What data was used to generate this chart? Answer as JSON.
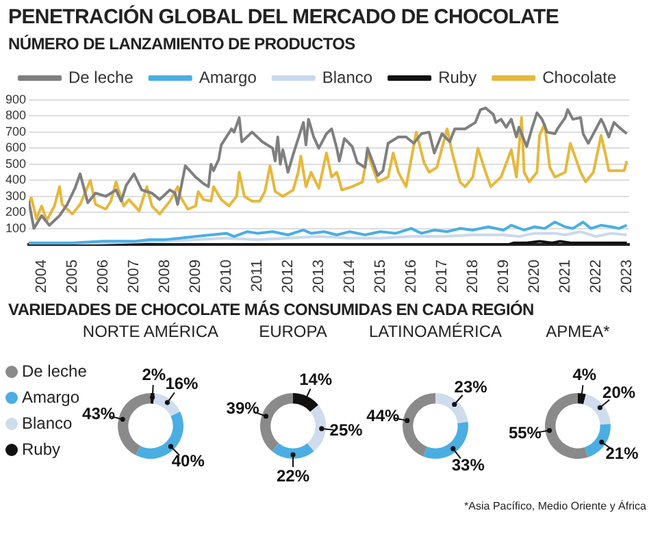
{
  "chart_data": [
    {
      "type": "line",
      "title": "PENETRACIÓN GLOBAL DEL MERCADO DE CHOCOLATE",
      "subtitle": "NÚMERO DE LANZAMIENTO DE PRODUCTOS",
      "xlim": [
        "2003-08",
        "2023-02"
      ],
      "xticks": [
        "2004",
        "2005",
        "2006",
        "2007",
        "2008",
        "2009",
        "2010",
        "2011",
        "2012",
        "2013",
        "2014",
        "2015",
        "2016",
        "2017",
        "2018",
        "2019",
        "2020",
        "2021",
        "2022",
        "2023"
      ],
      "ylim": [
        0,
        900
      ],
      "yticks": [
        100,
        200,
        300,
        400,
        500,
        600,
        700,
        800,
        900
      ],
      "grid": "y",
      "legend": "top",
      "marker": "none",
      "line_style": "solid",
      "series": [
        {
          "name": "De leche",
          "color": "#7f7f7f",
          "x": [
            "2003-08",
            "2003-10",
            "2004-01",
            "2004-04",
            "2004-08",
            "2004-11",
            "2005-02",
            "2005-04",
            "2005-07",
            "2005-10",
            "2006-02",
            "2006-06",
            "2006-08",
            "2006-10",
            "2007-01",
            "2007-04",
            "2007-08",
            "2007-11",
            "2008-03",
            "2008-05",
            "2008-06",
            "2008-09",
            "2009-01",
            "2009-04",
            "2009-06",
            "2009-07",
            "2009-08",
            "2009-10",
            "2009-11",
            "2010-03",
            "2010-04",
            "2010-06",
            "2010-07",
            "2010-11",
            "2011-03",
            "2011-07",
            "2011-08",
            "2011-09",
            "2011-10",
            "2011-11",
            "2012-01",
            "2012-03",
            "2012-05",
            "2012-07",
            "2012-08",
            "2012-09",
            "2012-11",
            "2013-01",
            "2013-04",
            "2013-06",
            "2013-08",
            "2013-09",
            "2013-11",
            "2014-02",
            "2014-04",
            "2014-07",
            "2014-08",
            "2014-12",
            "2015-02",
            "2015-04",
            "2015-08",
            "2015-11",
            "2016-02",
            "2016-05",
            "2016-08",
            "2016-10",
            "2017-01",
            "2017-04",
            "2017-06",
            "2017-10",
            "2018-02",
            "2018-04",
            "2018-06",
            "2018-09",
            "2018-10",
            "2018-12",
            "2019-02",
            "2019-04",
            "2019-06",
            "2019-07",
            "2019-10",
            "2019-12",
            "2020-02",
            "2020-04",
            "2020-06",
            "2020-09",
            "2020-10",
            "2021-01",
            "2021-02",
            "2021-04",
            "2021-07",
            "2021-08",
            "2021-10",
            "2022-01",
            "2022-03",
            "2022-04",
            "2022-06",
            "2022-08",
            "2022-10",
            "2023-01"
          ],
          "values": [
            270,
            100,
            180,
            120,
            180,
            250,
            350,
            440,
            260,
            320,
            300,
            340,
            270,
            370,
            440,
            340,
            320,
            280,
            340,
            320,
            250,
            490,
            420,
            380,
            360,
            500,
            460,
            530,
            620,
            720,
            700,
            790,
            640,
            700,
            640,
            600,
            520,
            670,
            500,
            590,
            450,
            560,
            660,
            760,
            620,
            780,
            670,
            600,
            690,
            720,
            600,
            520,
            660,
            610,
            510,
            480,
            600,
            430,
            460,
            630,
            670,
            670,
            630,
            690,
            700,
            570,
            690,
            640,
            720,
            720,
            760,
            840,
            850,
            810,
            760,
            780,
            730,
            780,
            670,
            730,
            610,
            720,
            820,
            780,
            700,
            690,
            720,
            790,
            840,
            780,
            790,
            690,
            630,
            720,
            780,
            750,
            670,
            760,
            730,
            690
          ]
        },
        {
          "name": "Amargo",
          "color": "#4aaee3",
          "x": [
            "2003-08",
            "2005-01",
            "2006-01",
            "2007-01",
            "2007-07",
            "2008-01",
            "2008-07",
            "2009-01",
            "2009-07",
            "2010-01",
            "2010-04",
            "2010-09",
            "2011-01",
            "2011-07",
            "2012-01",
            "2012-07",
            "2012-10",
            "2013-03",
            "2013-08",
            "2014-01",
            "2014-07",
            "2015-01",
            "2015-07",
            "2016-01",
            "2016-05",
            "2016-10",
            "2017-03",
            "2017-08",
            "2018-01",
            "2018-07",
            "2019-01",
            "2019-04",
            "2019-09",
            "2020-01",
            "2020-05",
            "2020-09",
            "2021-01",
            "2021-04",
            "2021-08",
            "2021-11",
            "2022-03",
            "2022-07",
            "2022-10",
            "2023-01"
          ],
          "values": [
            10,
            10,
            20,
            20,
            30,
            30,
            40,
            50,
            60,
            70,
            50,
            80,
            70,
            80,
            60,
            90,
            70,
            80,
            60,
            80,
            60,
            80,
            70,
            100,
            70,
            90,
            80,
            100,
            90,
            110,
            90,
            120,
            90,
            110,
            100,
            140,
            110,
            100,
            140,
            100,
            120,
            110,
            100,
            120
          ]
        },
        {
          "name": "Blanco",
          "color": "#c9d9ee",
          "x": [
            "2003-08",
            "2006-01",
            "2008-01",
            "2009-01",
            "2010-01",
            "2011-01",
            "2012-01",
            "2013-01",
            "2014-01",
            "2015-01",
            "2016-01",
            "2017-01",
            "2018-01",
            "2019-01",
            "2019-07",
            "2020-01",
            "2020-09",
            "2021-01",
            "2021-07",
            "2022-01",
            "2022-07",
            "2023-01"
          ],
          "values": [
            0,
            10,
            20,
            30,
            40,
            30,
            40,
            50,
            40,
            40,
            50,
            50,
            60,
            60,
            50,
            70,
            70,
            60,
            80,
            50,
            70,
            60
          ]
        },
        {
          "name": "Ruby",
          "color": "#111111",
          "x": [
            "2003-08",
            "2019-03",
            "2019-05",
            "2019-10",
            "2020-03",
            "2020-08",
            "2020-11",
            "2021-03",
            "2021-10",
            "2022-04",
            "2022-10",
            "2023-01"
          ],
          "values": [
            0,
            0,
            10,
            10,
            20,
            10,
            20,
            10,
            10,
            10,
            10,
            10
          ]
        },
        {
          "name": "Chocolate",
          "color": "#e6b83c",
          "x": [
            "2003-08",
            "2003-09",
            "2003-11",
            "2004-01",
            "2004-03",
            "2004-06",
            "2004-08",
            "2004-09",
            "2005-01",
            "2005-04",
            "2005-08",
            "2005-10",
            "2006-02",
            "2006-04",
            "2006-06",
            "2006-09",
            "2006-11",
            "2007-03",
            "2007-06",
            "2007-08",
            "2007-11",
            "2008-03",
            "2008-06",
            "2008-07",
            "2008-10",
            "2009-01",
            "2009-02",
            "2009-04",
            "2009-07",
            "2009-08",
            "2009-11",
            "2010-02",
            "2010-05",
            "2010-06",
            "2010-08",
            "2010-11",
            "2011-02",
            "2011-04",
            "2011-06",
            "2011-08",
            "2011-11",
            "2012-03",
            "2012-05",
            "2012-06",
            "2012-08",
            "2012-10",
            "2013-01",
            "2013-04",
            "2013-06",
            "2013-08",
            "2013-10",
            "2014-02",
            "2014-06",
            "2014-08",
            "2014-12",
            "2015-04",
            "2015-06",
            "2015-08",
            "2015-11",
            "2016-03",
            "2016-06",
            "2016-08",
            "2016-11",
            "2017-03",
            "2017-05",
            "2017-08",
            "2017-10",
            "2018-01",
            "2018-03",
            "2018-06",
            "2018-08",
            "2018-12",
            "2019-04",
            "2019-06",
            "2019-08",
            "2019-09",
            "2019-11",
            "2020-02",
            "2020-03",
            "2020-05",
            "2020-07",
            "2020-09",
            "2021-01",
            "2021-03",
            "2021-05",
            "2021-07",
            "2021-09",
            "2021-12",
            "2022-03",
            "2022-05",
            "2022-06",
            "2022-09",
            "2022-12",
            "2023-01"
          ],
          "values": [
            260,
            290,
            160,
            240,
            150,
            240,
            360,
            250,
            190,
            250,
            400,
            250,
            220,
            270,
            390,
            240,
            280,
            210,
            360,
            240,
            190,
            270,
            360,
            300,
            220,
            240,
            330,
            280,
            270,
            360,
            280,
            240,
            300,
            450,
            300,
            270,
            270,
            330,
            490,
            330,
            300,
            340,
            450,
            550,
            360,
            450,
            350,
            570,
            420,
            450,
            340,
            360,
            390,
            570,
            390,
            420,
            570,
            450,
            360,
            700,
            510,
            450,
            480,
            720,
            570,
            390,
            360,
            420,
            600,
            450,
            360,
            420,
            590,
            420,
            790,
            450,
            390,
            450,
            680,
            750,
            480,
            420,
            450,
            630,
            540,
            450,
            390,
            450,
            680,
            540,
            460,
            460,
            460,
            520
          ]
        }
      ]
    },
    {
      "type": "donut",
      "title": "VARIEDADES DE CHOCOLATE MÁS CONSUMIDAS EN CADA REGIÓN",
      "subtitle": "NORTE AMÉRICA",
      "legend": "left",
      "categories": [
        "Ruby",
        "Blanco",
        "Amargo",
        "De leche"
      ],
      "values": [
        2,
        16,
        40,
        43
      ],
      "value_labels": [
        "2%",
        "16%",
        "40%",
        "43%"
      ],
      "colors": [
        "#111111",
        "#cfdcee",
        "#4aaee3",
        "#8a8a8a"
      ]
    },
    {
      "type": "donut",
      "subtitle": "EUROPA",
      "categories": [
        null,
        null,
        null,
        null
      ],
      "values": [
        14,
        25,
        22,
        39
      ],
      "value_labels": [
        "14%",
        "25%",
        "22%",
        "39%"
      ],
      "colors": [
        "#111111",
        "#cfdcee",
        "#4aaee3",
        "#8a8a8a"
      ]
    },
    {
      "type": "donut",
      "subtitle": "LATINOAMÉRICA",
      "categories": [
        null,
        null,
        null
      ],
      "values": [
        23,
        33,
        44
      ],
      "value_labels": [
        "23%",
        "33%",
        "44%"
      ],
      "colors": [
        "#cfdcee",
        "#4aaee3",
        "#8a8a8a"
      ]
    },
    {
      "type": "donut",
      "subtitle": "APMEA*",
      "annotations": [
        "*Asia Pacífico, Medio Oriente y África"
      ],
      "categories": [
        null,
        null,
        null,
        null
      ],
      "values": [
        4,
        20,
        21,
        55
      ],
      "value_labels": [
        "4%",
        "20%",
        "21%",
        "55%"
      ],
      "colors": [
        "#111111",
        "#cfdcee",
        "#4aaee3",
        "#8a8a8a"
      ]
    }
  ]
}
